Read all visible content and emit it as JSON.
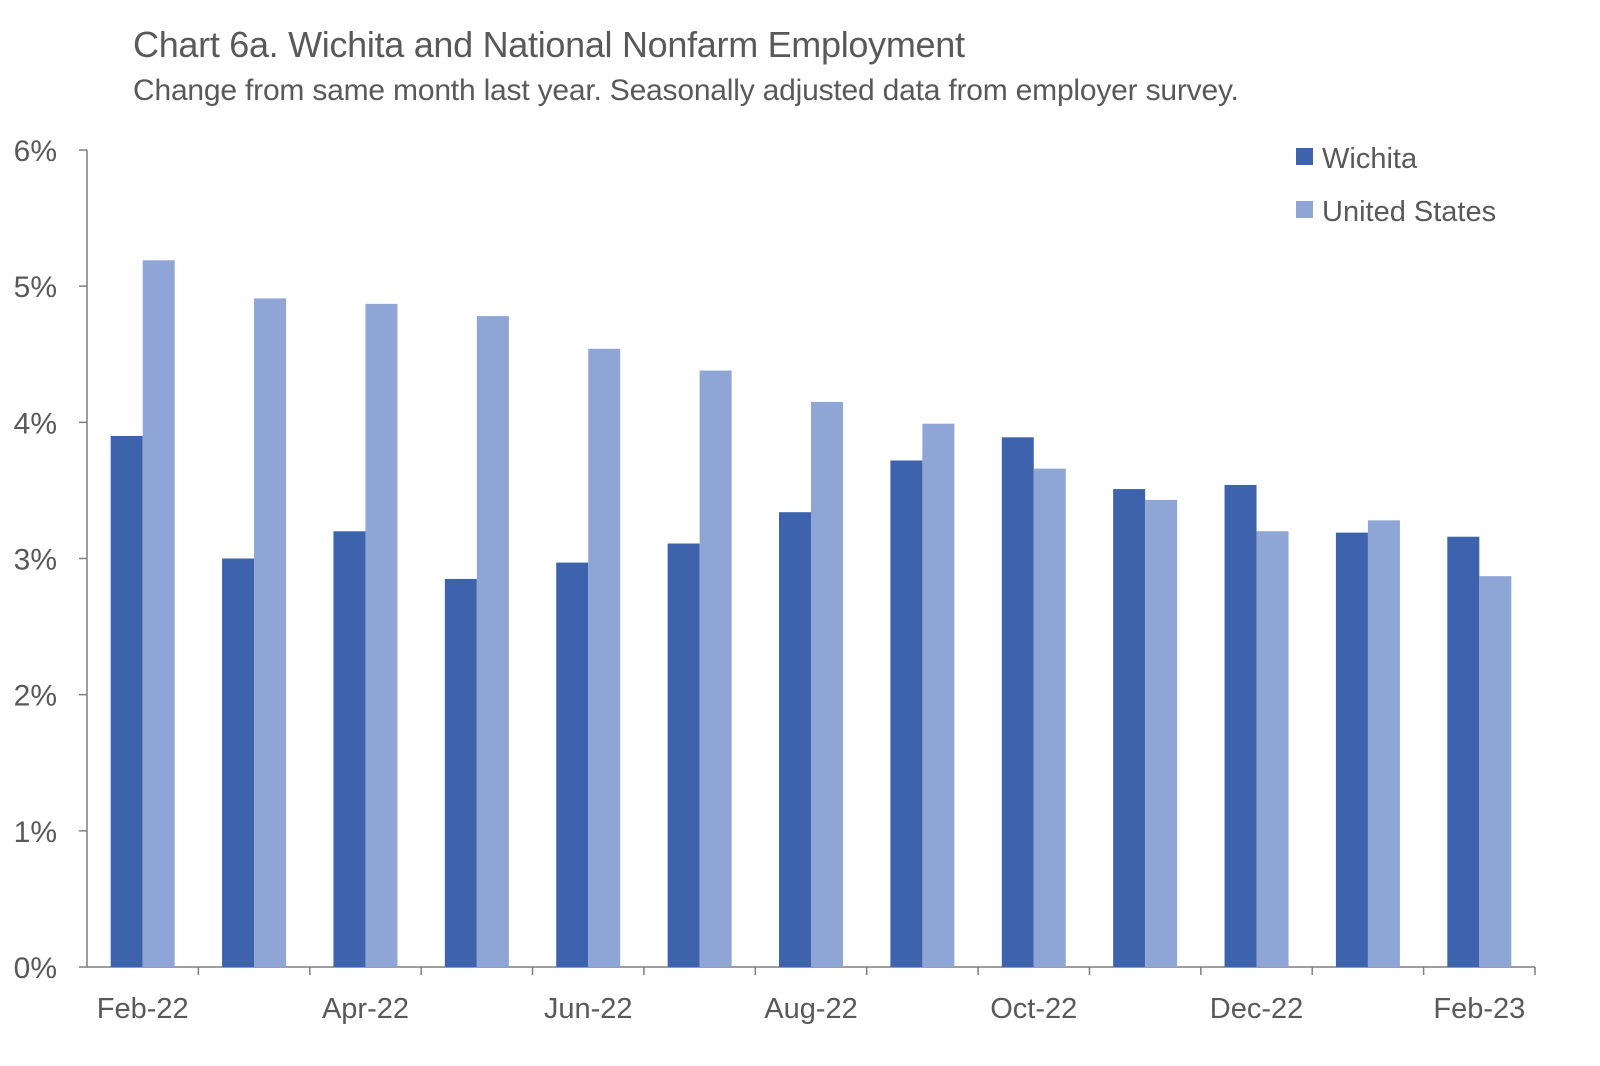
{
  "chart_data": {
    "type": "bar",
    "title": "Chart 6a. Wichita and National Nonfarm Employment",
    "subtitle": "Change from same month last year. Seasonally adjusted data from employer survey.",
    "xlabel": "",
    "ylabel": "",
    "ylim": [
      0,
      6
    ],
    "y_ticks": [
      "0%",
      "1%",
      "2%",
      "3%",
      "4%",
      "5%",
      "6%"
    ],
    "categories": [
      "Feb-22",
      "Mar-22",
      "Apr-22",
      "May-22",
      "Jun-22",
      "Jul-22",
      "Aug-22",
      "Sep-22",
      "Oct-22",
      "Nov-22",
      "Dec-22",
      "Jan-23",
      "Feb-23"
    ],
    "x_tick_labels": [
      "Feb-22",
      "",
      "Apr-22",
      "",
      "Jun-22",
      "",
      "Aug-22",
      "",
      "Oct-22",
      "",
      "Dec-22",
      "",
      "Feb-23"
    ],
    "series": [
      {
        "name": "Wichita",
        "color": "#3d63ad",
        "values": [
          3.9,
          3.0,
          3.2,
          2.85,
          2.97,
          3.11,
          3.34,
          3.72,
          3.89,
          3.51,
          3.54,
          3.19,
          3.16
        ]
      },
      {
        "name": "United States",
        "color": "#8fa5d6",
        "values": [
          5.19,
          4.91,
          4.87,
          4.78,
          4.54,
          4.38,
          4.15,
          3.99,
          3.66,
          3.43,
          3.2,
          3.28,
          2.87
        ]
      }
    ],
    "grid": false,
    "legend_position": "top-right"
  }
}
